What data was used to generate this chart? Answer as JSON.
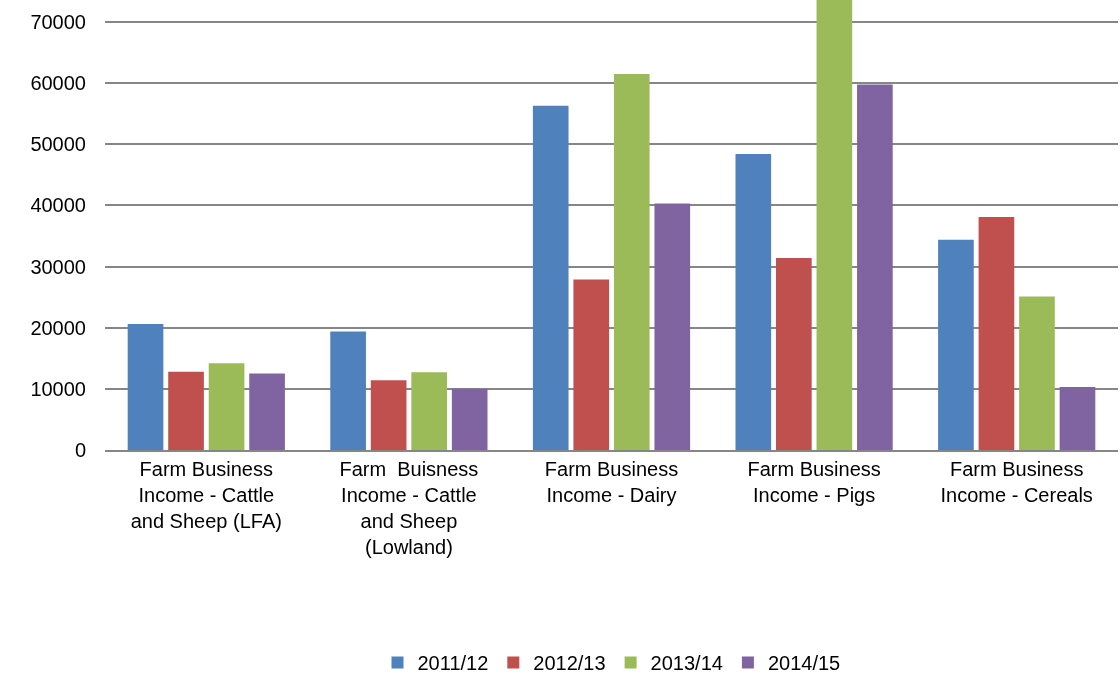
{
  "chart_data": {
    "type": "bar",
    "categories": [
      "Farm Business Income - Cattle and Sheep (LFA)",
      "Farm  Buisness Income - Cattle and Sheep (Lowland)",
      "Farm Business Income - Dairy",
      "Farm Business Income - Pigs",
      "Farm Business Income - Cereals"
    ],
    "series": [
      {
        "name": "2011/12",
        "color": "#4f81bd",
        "values": [
          20600,
          19400,
          56300,
          48400,
          34400
        ]
      },
      {
        "name": "2012/13",
        "color": "#c0504d",
        "values": [
          12800,
          11400,
          27900,
          31400,
          38100
        ]
      },
      {
        "name": "2013/14",
        "color": "#9bbb59",
        "values": [
          14200,
          12700,
          61500,
          73600,
          25100
        ]
      },
      {
        "name": "2014/15",
        "color": "#8064a2",
        "values": [
          12500,
          10000,
          40300,
          59800,
          10300
        ]
      }
    ],
    "ylim": [
      0,
      73600
    ],
    "yticks": [
      0,
      10000,
      20000,
      30000,
      40000,
      50000,
      60000,
      70000
    ],
    "grid": "y",
    "legend": "bottom"
  }
}
